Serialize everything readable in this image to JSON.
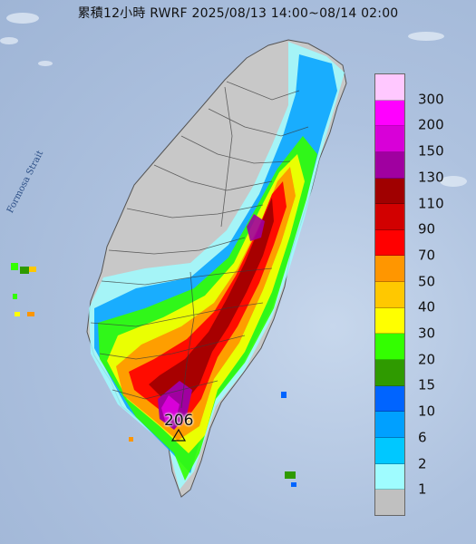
{
  "title": "累積12小時 RWRF 2025/08/13 14:00~08/14 02:00",
  "map_labels": {
    "strait": "Formosa Strait",
    "max_value": "206"
  },
  "legend": {
    "levels": [
      {
        "label": "300",
        "color": "#ffc8ff"
      },
      {
        "label": "200",
        "color": "#ff00ff"
      },
      {
        "label": "150",
        "color": "#d800d8"
      },
      {
        "label": "130",
        "color": "#a000a0"
      },
      {
        "label": "110",
        "color": "#a00000"
      },
      {
        "label": "90",
        "color": "#d20000"
      },
      {
        "label": "70",
        "color": "#ff0000"
      },
      {
        "label": "50",
        "color": "#ff9600"
      },
      {
        "label": "40",
        "color": "#ffc800"
      },
      {
        "label": "30",
        "color": "#ffff00"
      },
      {
        "label": "20",
        "color": "#33ff00"
      },
      {
        "label": "15",
        "color": "#2f9a00"
      },
      {
        "label": "10",
        "color": "#0064ff"
      },
      {
        "label": "6",
        "color": "#00a0ff"
      },
      {
        "label": "2",
        "color": "#00c8ff"
      },
      {
        "label": "1",
        "color": "#9ffcff"
      },
      {
        "label": "",
        "color": "#c0c0c0"
      }
    ]
  }
}
